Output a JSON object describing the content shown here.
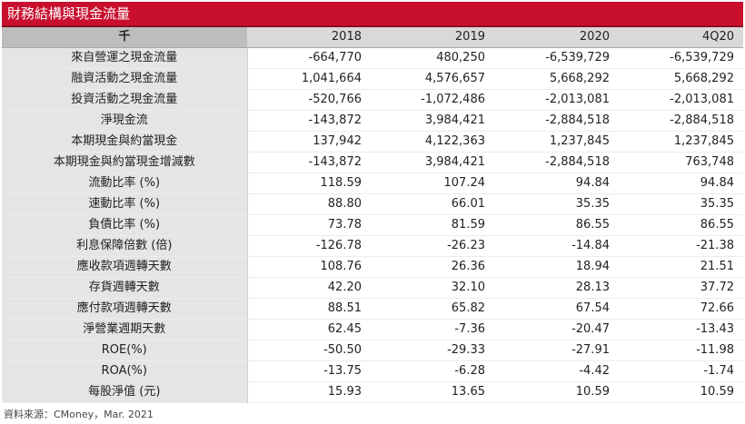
{
  "title": "財務結構與現金流量",
  "table": {
    "unit_header": "千",
    "columns": [
      "2018",
      "2019",
      "2020",
      "4Q20"
    ],
    "rows": [
      {
        "label": "來自營運之現金流量",
        "values": [
          "-664,770",
          "480,250",
          "-6,539,729",
          "-6,539,729"
        ]
      },
      {
        "label": "融資活動之現金流量",
        "values": [
          "1,041,664",
          "4,576,657",
          "5,668,292",
          "5,668,292"
        ]
      },
      {
        "label": "投資活動之現金流量",
        "values": [
          "-520,766",
          "-1,072,486",
          "-2,013,081",
          "-2,013,081"
        ]
      },
      {
        "label": "淨現金流",
        "values": [
          "-143,872",
          "3,984,421",
          "-2,884,518",
          "-2,884,518"
        ]
      },
      {
        "label": "本期現金與約當現金",
        "values": [
          "137,942",
          "4,122,363",
          "1,237,845",
          "1,237,845"
        ]
      },
      {
        "label": "本期現金與約當現金增減數",
        "values": [
          "-143,872",
          "3,984,421",
          "-2,884,518",
          "763,748"
        ]
      },
      {
        "label": "流動比率 (%)",
        "values": [
          "118.59",
          "107.24",
          "94.84",
          "94.84"
        ]
      },
      {
        "label": "速動比率 (%)",
        "values": [
          "88.80",
          "66.01",
          "35.35",
          "35.35"
        ]
      },
      {
        "label": "負債比率 (%)",
        "values": [
          "73.78",
          "81.59",
          "86.55",
          "86.55"
        ]
      },
      {
        "label": "利息保障倍數 (倍)",
        "values": [
          "-126.78",
          "-26.23",
          "-14.84",
          "-21.38"
        ]
      },
      {
        "label": "應收款項週轉天數",
        "values": [
          "108.76",
          "26.36",
          "18.94",
          "21.51"
        ]
      },
      {
        "label": "存貨週轉天數",
        "values": [
          "42.20",
          "32.10",
          "28.13",
          "37.72"
        ]
      },
      {
        "label": "應付款項週轉天數",
        "values": [
          "88.51",
          "65.82",
          "67.54",
          "72.66"
        ]
      },
      {
        "label": "淨營業週期天數",
        "values": [
          "62.45",
          "-7.36",
          "-20.47",
          "-13.43"
        ]
      },
      {
        "label": "ROE(%)",
        "values": [
          "-50.50",
          "-29.33",
          "-27.91",
          "-11.98"
        ]
      },
      {
        "label": "ROA(%)",
        "values": [
          "-13.75",
          "-6.28",
          "-4.42",
          "-1.74"
        ]
      },
      {
        "label": "每股淨值 (元)",
        "values": [
          "15.93",
          "13.65",
          "10.59",
          "10.59"
        ]
      }
    ]
  },
  "source": "資料來源：CMoney，Mar. 2021",
  "colors": {
    "title_bg": "#c8102e",
    "header_bg": "#d9d9d9",
    "label_bg": "#e5e5e5"
  }
}
